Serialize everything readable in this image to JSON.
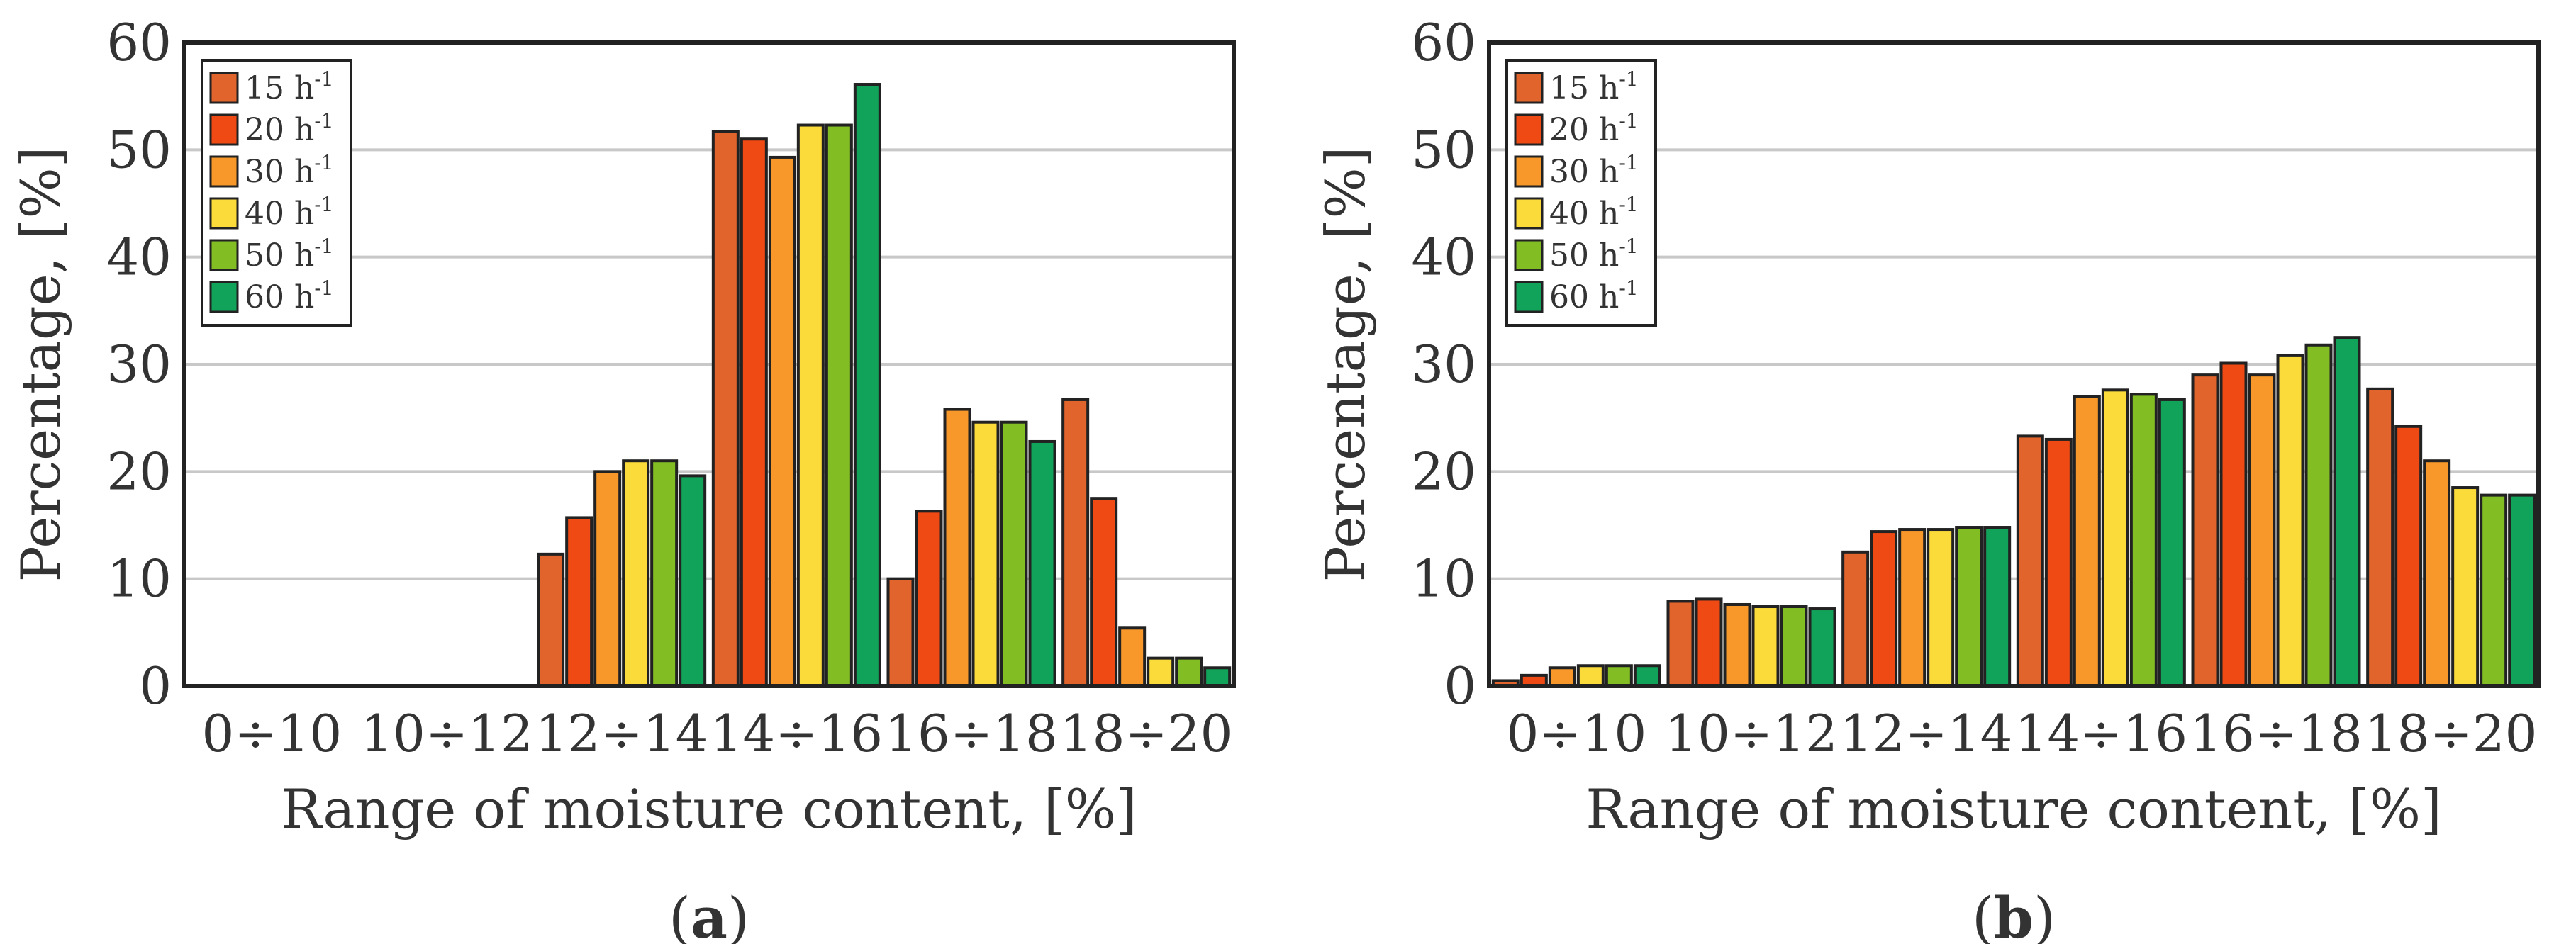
{
  "colors": [
    "#e0642c",
    "#f04a14",
    "#f8982a",
    "#fadb3a",
    "#82bd24",
    "#12a35a"
  ],
  "chart_data": [
    {
      "type": "bar",
      "caption": "a",
      "caption_open": "(",
      "caption_close": ")",
      "xlabel": "Range of moisture content, [%]",
      "ylabel": "Percentage, [%]",
      "ylim": [
        0,
        60
      ],
      "yticks": [
        "0",
        "10",
        "20",
        "30",
        "40",
        "50",
        "60"
      ],
      "grid": true,
      "legend_position": "top-left",
      "categories": [
        "0÷10",
        "10÷12",
        "12÷14",
        "14÷16",
        "16÷18",
        "18÷20"
      ],
      "series": [
        {
          "name": "15 h",
          "superscript": "-1",
          "values": [
            0,
            0,
            12.3,
            51.7,
            10.0,
            26.7
          ]
        },
        {
          "name": "20 h",
          "superscript": "-1",
          "values": [
            0,
            0,
            15.7,
            51.0,
            16.3,
            17.5
          ]
        },
        {
          "name": "30 h",
          "superscript": "-1",
          "values": [
            0,
            0,
            20.0,
            49.3,
            25.8,
            5.4
          ]
        },
        {
          "name": "40 h",
          "superscript": "-1",
          "values": [
            0,
            0,
            21.0,
            52.3,
            24.6,
            2.6
          ]
        },
        {
          "name": "50 h",
          "superscript": "-1",
          "values": [
            0,
            0,
            21.0,
            52.3,
            24.6,
            2.6
          ]
        },
        {
          "name": "60 h",
          "superscript": "-1",
          "values": [
            0,
            0,
            19.6,
            56.1,
            22.8,
            1.7
          ]
        }
      ]
    },
    {
      "type": "bar",
      "caption": "b",
      "caption_open": "(",
      "caption_close": ")",
      "xlabel": "Range of moisture content, [%]",
      "ylabel": "Percentage, [%]",
      "ylim": [
        0,
        60
      ],
      "yticks": [
        "0",
        "10",
        "20",
        "30",
        "40",
        "50",
        "60"
      ],
      "grid": true,
      "legend_position": "top-left",
      "categories": [
        "0÷10",
        "10÷12",
        "12÷14",
        "14÷16",
        "16÷18",
        "18÷20"
      ],
      "series": [
        {
          "name": "15 h",
          "superscript": "-1",
          "values": [
            0.5,
            7.9,
            12.5,
            23.3,
            29.0,
            27.7
          ]
        },
        {
          "name": "20 h",
          "superscript": "-1",
          "values": [
            1.0,
            8.1,
            14.4,
            23.0,
            30.1,
            24.2
          ]
        },
        {
          "name": "30 h",
          "superscript": "-1",
          "values": [
            1.7,
            7.6,
            14.6,
            27.0,
            29.0,
            21.0
          ]
        },
        {
          "name": "40 h",
          "superscript": "-1",
          "values": [
            1.9,
            7.4,
            14.6,
            27.6,
            30.8,
            18.5
          ]
        },
        {
          "name": "50 h",
          "superscript": "-1",
          "values": [
            1.9,
            7.4,
            14.8,
            27.2,
            31.8,
            17.8
          ]
        },
        {
          "name": "60 h",
          "superscript": "-1",
          "values": [
            1.9,
            7.2,
            14.8,
            26.7,
            32.5,
            17.8
          ]
        }
      ]
    }
  ]
}
